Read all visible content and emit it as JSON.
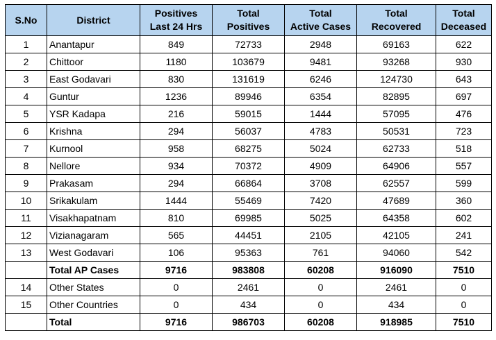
{
  "headers": [
    [
      "S.No"
    ],
    [
      "District"
    ],
    [
      "Positives",
      "Last 24 Hrs"
    ],
    [
      "Total",
      "Positives"
    ],
    [
      "Total",
      "Active Cases"
    ],
    [
      "Total",
      "Recovered"
    ],
    [
      "Total",
      "Deceased"
    ]
  ],
  "rows": [
    {
      "sno": "1",
      "district": "Anantapur",
      "pos24": "849",
      "total_pos": "72733",
      "active": "2948",
      "recovered": "69163",
      "deceased": "622",
      "bold": false
    },
    {
      "sno": "2",
      "district": "Chittoor",
      "pos24": "1180",
      "total_pos": "103679",
      "active": "9481",
      "recovered": "93268",
      "deceased": "930",
      "bold": false
    },
    {
      "sno": "3",
      "district": "East Godavari",
      "pos24": "830",
      "total_pos": "131619",
      "active": "6246",
      "recovered": "124730",
      "deceased": "643",
      "bold": false
    },
    {
      "sno": "4",
      "district": "Guntur",
      "pos24": "1236",
      "total_pos": "89946",
      "active": "6354",
      "recovered": "82895",
      "deceased": "697",
      "bold": false
    },
    {
      "sno": "5",
      "district": "YSR Kadapa",
      "pos24": "216",
      "total_pos": "59015",
      "active": "1444",
      "recovered": "57095",
      "deceased": "476",
      "bold": false
    },
    {
      "sno": "6",
      "district": "Krishna",
      "pos24": "294",
      "total_pos": "56037",
      "active": "4783",
      "recovered": "50531",
      "deceased": "723",
      "bold": false
    },
    {
      "sno": "7",
      "district": "Kurnool",
      "pos24": "958",
      "total_pos": "68275",
      "active": "5024",
      "recovered": "62733",
      "deceased": "518",
      "bold": false
    },
    {
      "sno": "8",
      "district": "Nellore",
      "pos24": "934",
      "total_pos": "70372",
      "active": "4909",
      "recovered": "64906",
      "deceased": "557",
      "bold": false
    },
    {
      "sno": "9",
      "district": "Prakasam",
      "pos24": "294",
      "total_pos": "66864",
      "active": "3708",
      "recovered": "62557",
      "deceased": "599",
      "bold": false
    },
    {
      "sno": "10",
      "district": "Srikakulam",
      "pos24": "1444",
      "total_pos": "55469",
      "active": "7420",
      "recovered": "47689",
      "deceased": "360",
      "bold": false
    },
    {
      "sno": "11",
      "district": "Visakhapatnam",
      "pos24": "810",
      "total_pos": "69985",
      "active": "5025",
      "recovered": "64358",
      "deceased": "602",
      "bold": false
    },
    {
      "sno": "12",
      "district": "Vizianagaram",
      "pos24": "565",
      "total_pos": "44451",
      "active": "2105",
      "recovered": "42105",
      "deceased": "241",
      "bold": false
    },
    {
      "sno": "13",
      "district": "West Godavari",
      "pos24": "106",
      "total_pos": "95363",
      "active": "761",
      "recovered": "94060",
      "deceased": "542",
      "bold": false
    },
    {
      "sno": "",
      "district": "Total AP Cases",
      "pos24": "9716",
      "total_pos": "983808",
      "active": "60208",
      "recovered": "916090",
      "deceased": "7510",
      "bold": true
    },
    {
      "sno": "14",
      "district": "Other States",
      "pos24": "0",
      "total_pos": "2461",
      "active": "0",
      "recovered": "2461",
      "deceased": "0",
      "bold": false
    },
    {
      "sno": "15",
      "district": "Other Countries",
      "pos24": "0",
      "total_pos": "434",
      "active": "0",
      "recovered": "434",
      "deceased": "0",
      "bold": false
    },
    {
      "sno": "",
      "district": "Total",
      "pos24": "9716",
      "total_pos": "986703",
      "active": "60208",
      "recovered": "918985",
      "deceased": "7510",
      "bold": true
    }
  ],
  "colors": {
    "header_bg": "#b7d4ef",
    "border": "#000000"
  }
}
